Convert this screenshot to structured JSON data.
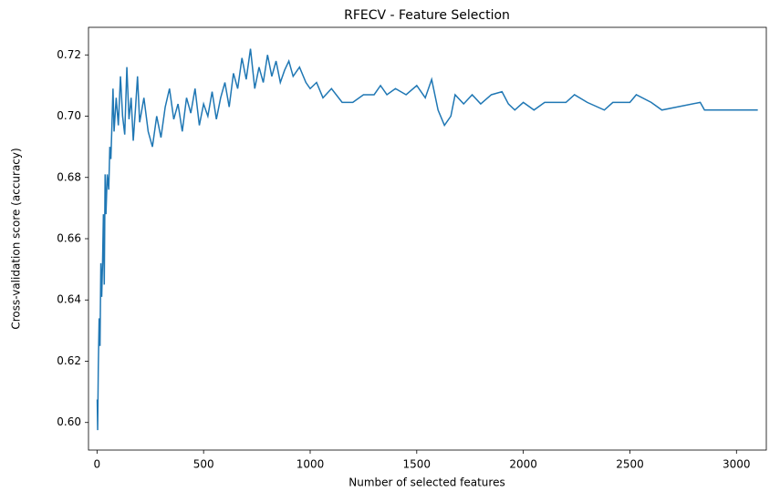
{
  "chart_data": {
    "type": "line",
    "title": "RFECV - Feature Selection",
    "x_label": "Number of selected features",
    "y_label": "Cross-validation score (accuracy)",
    "x": [
      1,
      3,
      6,
      10,
      14,
      18,
      22,
      26,
      30,
      34,
      38,
      42,
      48,
      55,
      60,
      65,
      70,
      75,
      80,
      90,
      100,
      110,
      120,
      130,
      140,
      150,
      160,
      170,
      180,
      190,
      200,
      220,
      240,
      260,
      280,
      300,
      320,
      340,
      360,
      380,
      400,
      420,
      440,
      460,
      480,
      500,
      520,
      540,
      560,
      580,
      600,
      620,
      640,
      660,
      680,
      700,
      720,
      740,
      760,
      780,
      800,
      820,
      840,
      860,
      880,
      900,
      920,
      950,
      980,
      1000,
      1030,
      1060,
      1100,
      1150,
      1200,
      1250,
      1300,
      1330,
      1360,
      1400,
      1450,
      1500,
      1540,
      1570,
      1600,
      1630,
      1660,
      1680,
      1720,
      1760,
      1800,
      1850,
      1900,
      1930,
      1960,
      2000,
      2050,
      2100,
      2150,
      2200,
      2240,
      2300,
      2380,
      2420,
      2500,
      2530,
      2600,
      2650,
      2830,
      2850,
      3100
    ],
    "series": [
      {
        "color": "#1f77b4",
        "values": [
          0.6075,
          0.5975,
          0.618,
          0.634,
          0.625,
          0.652,
          0.641,
          0.652,
          0.668,
          0.645,
          0.681,
          0.668,
          0.681,
          0.676,
          0.69,
          0.686,
          0.697,
          0.709,
          0.695,
          0.706,
          0.697,
          0.713,
          0.7,
          0.694,
          0.716,
          0.699,
          0.706,
          0.692,
          0.702,
          0.713,
          0.698,
          0.706,
          0.695,
          0.69,
          0.7,
          0.693,
          0.703,
          0.709,
          0.699,
          0.704,
          0.695,
          0.706,
          0.701,
          0.709,
          0.697,
          0.704,
          0.7,
          0.708,
          0.699,
          0.706,
          0.711,
          0.703,
          0.714,
          0.709,
          0.719,
          0.712,
          0.722,
          0.709,
          0.716,
          0.711,
          0.72,
          0.713,
          0.718,
          0.711,
          0.715,
          0.718,
          0.713,
          0.716,
          0.711,
          0.709,
          0.711,
          0.706,
          0.709,
          0.7045,
          0.7045,
          0.707,
          0.707,
          0.71,
          0.707,
          0.709,
          0.707,
          0.71,
          0.706,
          0.712,
          0.702,
          0.697,
          0.7,
          0.707,
          0.704,
          0.707,
          0.704,
          0.707,
          0.708,
          0.704,
          0.702,
          0.7045,
          0.702,
          0.7045,
          0.7045,
          0.7045,
          0.707,
          0.7045,
          0.702,
          0.7045,
          0.7045,
          0.707,
          0.7045,
          0.702,
          0.7045,
          0.702,
          0.702
        ]
      }
    ],
    "xlim": [
      -40,
      3140
    ],
    "ylim": [
      0.591,
      0.729
    ],
    "xticks": [
      0,
      500,
      1000,
      1500,
      2000,
      2500,
      3000
    ],
    "yticks": [
      {
        "value": 0.6,
        "label": "0.60"
      },
      0.62,
      0.64,
      0.66,
      0.68,
      {
        "value": 0.7,
        "label": "0.70"
      },
      0.72
    ],
    "grid": false
  }
}
